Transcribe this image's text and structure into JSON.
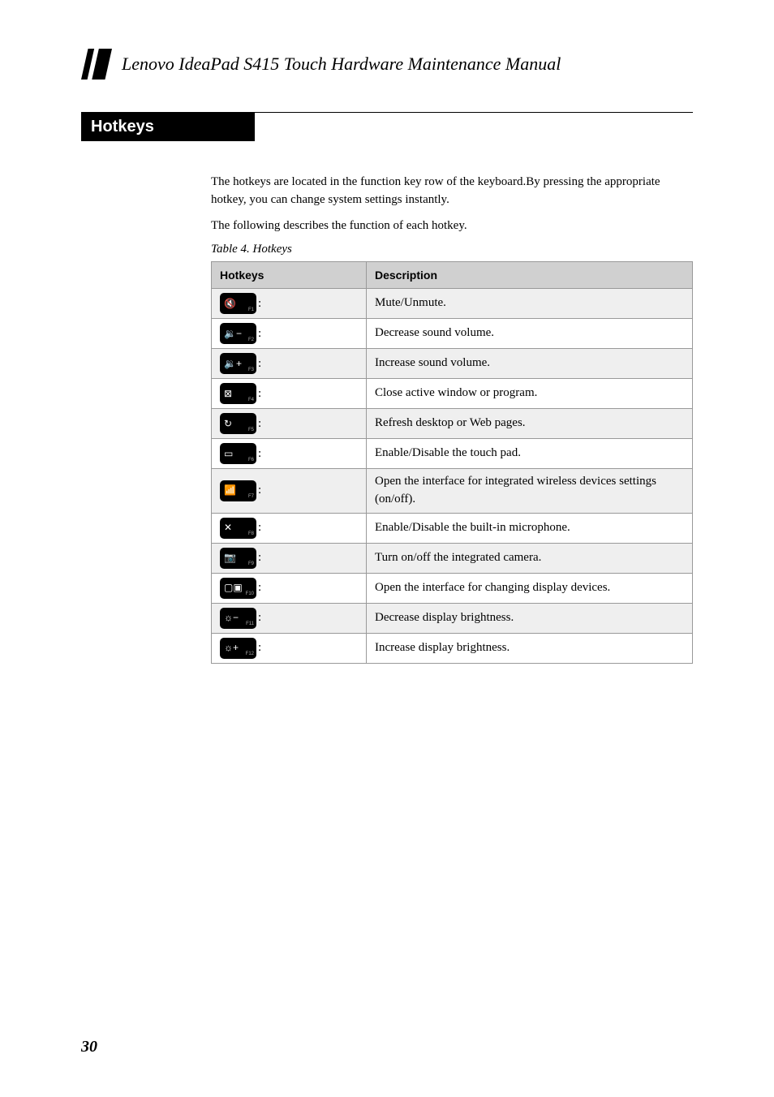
{
  "header": {
    "title": "Lenovo IdeaPad S415 Touch Hardware Maintenance Manual"
  },
  "section": {
    "title": "Hotkeys"
  },
  "intro": {
    "line1": "The hotkeys are located in the function key row of the keyboard.By pressing the appropriate hotkey, you can change system settings instantly.",
    "line2": "The following describes the function of each hotkey."
  },
  "table": {
    "caption": "Table 4. Hotkeys",
    "col1": "Hotkeys",
    "col2": "Description",
    "rows": [
      {
        "fn": "F1",
        "icon": "mute-icon",
        "glyph": "🔇",
        "desc": "Mute/Unmute."
      },
      {
        "fn": "F2",
        "icon": "vol-down-icon",
        "glyph": "🔉−",
        "desc": "Decrease sound volume."
      },
      {
        "fn": "F3",
        "icon": "vol-up-icon",
        "glyph": "🔉+",
        "desc": "Increase sound volume."
      },
      {
        "fn": "F4",
        "icon": "close-icon",
        "glyph": "⊠",
        "desc": "Close active window or program."
      },
      {
        "fn": "F5",
        "icon": "refresh-icon",
        "glyph": "↻",
        "desc": "Refresh desktop or Web pages."
      },
      {
        "fn": "F6",
        "icon": "touchpad-icon",
        "glyph": "▭",
        "desc": "Enable/Disable the touch pad."
      },
      {
        "fn": "F7",
        "icon": "wireless-icon",
        "glyph": "📶",
        "desc": "Open the interface for integrated wireless devices settings (on/off)."
      },
      {
        "fn": "F8",
        "icon": "mic-off-icon",
        "glyph": "✕",
        "desc": "Enable/Disable the built-in microphone."
      },
      {
        "fn": "F9",
        "icon": "camera-icon",
        "glyph": "📷",
        "desc": "Turn on/off the integrated camera."
      },
      {
        "fn": "F10",
        "icon": "display-icon",
        "glyph": "▢▣",
        "desc": "Open the interface for changing display devices."
      },
      {
        "fn": "F11",
        "icon": "bright-down-icon",
        "glyph": "☼−",
        "desc": "Decrease display brightness."
      },
      {
        "fn": "F12",
        "icon": "bright-up-icon",
        "glyph": "☼+",
        "desc": "Increase display brightness."
      }
    ]
  },
  "pageNumber": "30",
  "colors": {
    "header_black": "#000000",
    "th_bg": "#d0d0d0",
    "row_odd_bg": "#efefef",
    "row_even_bg": "#ffffff",
    "border": "#999999"
  }
}
